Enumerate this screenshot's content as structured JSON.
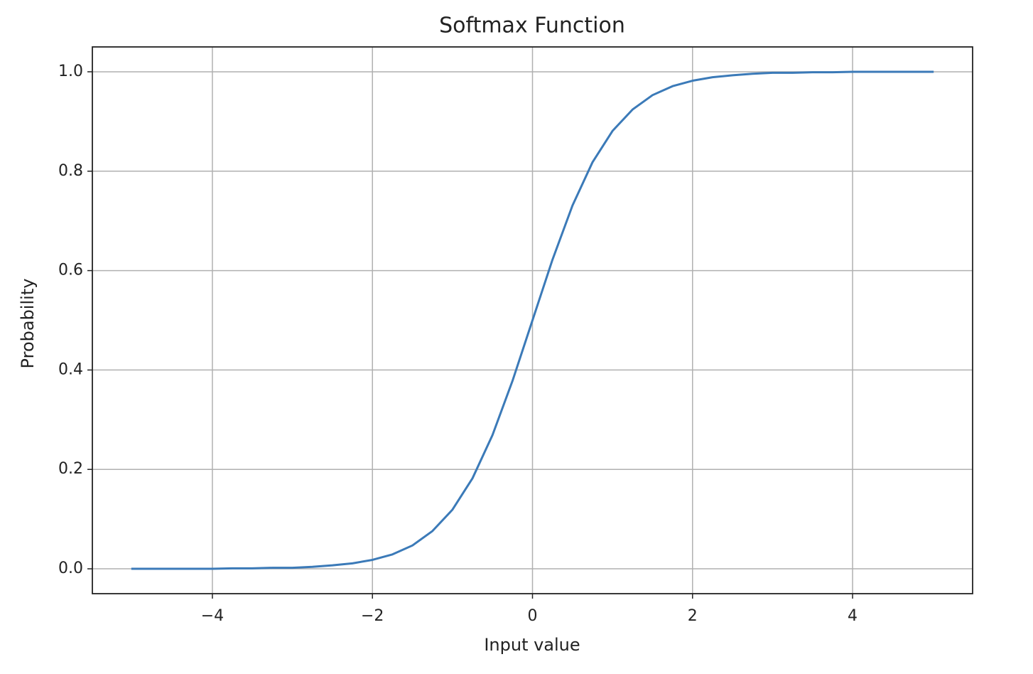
{
  "chart_data": {
    "type": "line",
    "title": "Softmax Function",
    "x_label": "Input value",
    "y_label": "Probability",
    "x": [
      -5,
      -4.75,
      -4.5,
      -4.25,
      -4,
      -3.75,
      -3.5,
      -3.25,
      -3,
      -2.75,
      -2.5,
      -2.25,
      -2,
      -1.75,
      -1.5,
      -1.25,
      -1,
      -0.75,
      -0.5,
      -0.25,
      0,
      0.25,
      0.5,
      0.75,
      1,
      1.25,
      1.5,
      1.75,
      2,
      2.25,
      2.5,
      2.75,
      3,
      3.25,
      3.5,
      3.75,
      4,
      4.25,
      4.5,
      4.75,
      5
    ],
    "values": [
      0,
      0,
      0,
      0,
      0,
      0.001,
      0.001,
      0.002,
      0.002,
      0.004,
      0.007,
      0.011,
      0.018,
      0.029,
      0.047,
      0.076,
      0.119,
      0.182,
      0.269,
      0.378,
      0.5,
      0.622,
      0.731,
      0.818,
      0.881,
      0.924,
      0.953,
      0.971,
      0.982,
      0.989,
      0.993,
      0.996,
      0.998,
      0.998,
      0.999,
      0.999,
      1,
      1,
      1,
      1,
      1
    ],
    "color": "#3b7ab8",
    "xlim": [
      -5.5,
      5.5
    ],
    "ylim": [
      -0.05,
      1.05
    ],
    "xticks": [
      {
        "value": -4,
        "label": "−4"
      },
      {
        "value": -2,
        "label": "−2"
      },
      0,
      2,
      4
    ],
    "yticks": [
      {
        "value": 0,
        "label": "0.0"
      },
      {
        "value": 0.2,
        "label": "0.2"
      },
      {
        "value": 0.4,
        "label": "0.4"
      },
      {
        "value": 0.6,
        "label": "0.6"
      },
      {
        "value": 0.8,
        "label": "0.8"
      },
      {
        "value": 1,
        "label": "1.0"
      }
    ],
    "grid": true
  }
}
